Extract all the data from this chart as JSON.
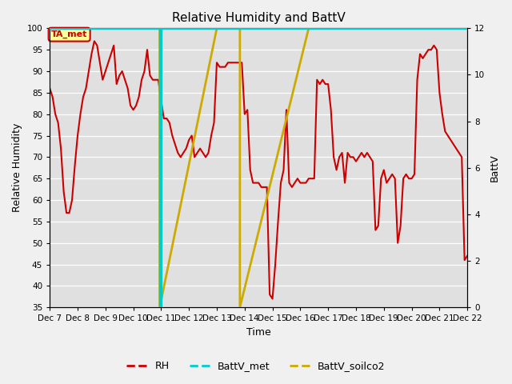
{
  "title": "Relative Humidity and BattV",
  "ylabel_left": "Relative Humidity",
  "ylabel_right": "BattV",
  "xlabel": "Time",
  "ylim_left": [
    35,
    100
  ],
  "ylim_right": [
    0,
    12
  ],
  "yticks_left": [
    35,
    40,
    45,
    50,
    55,
    60,
    65,
    70,
    75,
    80,
    85,
    90,
    95,
    100
  ],
  "yticks_right": [
    0,
    2,
    4,
    6,
    8,
    10,
    12
  ],
  "bg_color": "#f0f0f0",
  "plot_bg_color": "#e0e0e0",
  "annotation_text": "TA_met",
  "annotation_color": "#cc0000",
  "annotation_bg": "#ffff99",
  "rh_color": "#cc0000",
  "battv_met_color": "#00cccc",
  "battv_soilco2_color": "#ccaa00",
  "x_labels": [
    "Dec 7",
    "Dec 8",
    "Dec 9",
    "Dec 10",
    "Dec 11",
    "Dec 12",
    "Dec 13",
    "Dec 14",
    "Dec 15",
    "Dec 16",
    "Dec 17",
    "Dec 18",
    "Dec 19",
    "Dec 20",
    "Dec 21",
    "Dec 22"
  ],
  "rh_x": [
    7.0,
    7.1,
    7.2,
    7.3,
    7.4,
    7.5,
    7.6,
    7.7,
    7.8,
    7.9,
    8.0,
    8.1,
    8.2,
    8.3,
    8.4,
    8.5,
    8.6,
    8.7,
    8.8,
    8.9,
    9.0,
    9.1,
    9.2,
    9.3,
    9.4,
    9.5,
    9.6,
    9.7,
    9.8,
    9.9,
    10.0,
    10.1,
    10.2,
    10.3,
    10.4,
    10.5,
    10.6,
    10.7,
    10.8,
    10.9,
    11.0,
    11.1,
    11.2,
    11.3,
    11.4,
    11.5,
    11.6,
    11.7,
    11.8,
    11.9,
    12.0,
    12.1,
    12.2,
    12.3,
    12.4,
    12.5,
    12.6,
    12.7,
    12.8,
    12.9,
    13.0,
    13.1,
    13.2,
    13.3,
    13.4,
    13.5,
    13.6,
    13.7,
    13.8,
    13.9,
    14.0,
    14.1,
    14.2,
    14.3,
    14.4,
    14.5,
    14.6,
    14.7,
    14.8,
    14.9,
    15.0,
    15.1,
    15.2,
    15.3,
    15.4,
    15.5,
    15.6,
    15.7,
    15.8,
    15.9,
    16.0,
    16.1,
    16.2,
    16.3,
    16.4,
    16.5,
    16.6,
    16.7,
    16.8,
    16.9,
    17.0,
    17.1,
    17.2,
    17.3,
    17.4,
    17.5,
    17.6,
    17.7,
    17.8,
    17.9,
    18.0,
    18.1,
    18.2,
    18.3,
    18.4,
    18.5,
    18.6,
    18.7,
    18.8,
    18.9,
    19.0,
    19.1,
    19.2,
    19.3,
    19.4,
    19.5,
    19.6,
    19.7,
    19.8,
    19.9,
    20.0,
    20.1,
    20.2,
    20.3,
    20.4,
    20.5,
    20.6,
    20.7,
    20.8,
    20.9,
    21.0,
    21.1,
    21.2,
    21.3,
    21.4,
    21.5,
    21.6,
    21.7,
    21.8,
    21.9,
    22.0
  ],
  "rh_y": [
    86,
    84,
    80,
    78,
    72,
    62,
    57,
    57,
    60,
    68,
    75,
    80,
    84,
    86,
    90,
    94,
    97,
    96,
    92,
    88,
    90,
    92,
    94,
    96,
    87,
    89,
    90,
    88,
    86,
    82,
    81,
    82,
    84,
    88,
    90,
    95,
    89,
    88,
    88,
    88,
    83,
    79,
    79,
    78,
    75,
    73,
    71,
    70,
    71,
    72,
    74,
    75,
    70,
    71,
    72,
    71,
    70,
    71,
    75,
    78,
    92,
    91,
    91,
    91,
    92,
    92,
    92,
    92,
    92,
    92,
    80,
    81,
    67,
    64,
    64,
    64,
    63,
    63,
    63,
    38,
    37,
    45,
    55,
    64,
    67,
    81,
    64,
    63,
    64,
    65,
    64,
    64,
    64,
    65,
    65,
    65,
    88,
    87,
    88,
    87,
    87,
    81,
    70,
    67,
    70,
    71,
    64,
    71,
    70,
    70,
    69,
    70,
    71,
    70,
    71,
    70,
    69,
    53,
    54,
    65,
    67,
    64,
    65,
    66,
    65,
    50,
    54,
    65,
    66,
    65,
    65,
    66,
    88,
    94,
    93,
    94,
    95,
    95,
    96,
    95,
    85,
    80,
    76,
    75,
    74,
    73,
    72,
    71,
    70,
    46,
    47
  ],
  "battv_met_x": [
    7.0,
    10.95,
    10.95,
    10.98,
    10.98,
    22.0
  ],
  "battv_met_y": [
    12,
    12,
    0,
    0,
    12,
    12
  ],
  "battv_soilco2_x": [
    7.0,
    10.95,
    10.95,
    13.0,
    13.83,
    13.83,
    16.3,
    16.3,
    22.0
  ],
  "battv_soilco2_y": [
    12,
    12,
    0,
    12,
    12,
    0,
    12,
    12,
    12
  ]
}
